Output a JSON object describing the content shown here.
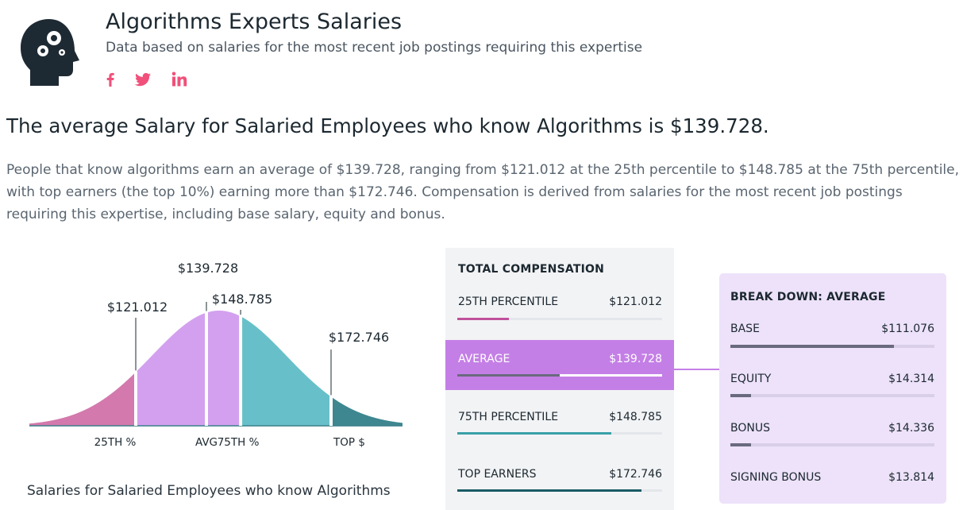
{
  "header": {
    "title": "Algorithms Experts Salaries",
    "subtitle": "Data based on salaries for the most recent job postings requiring this expertise",
    "social": [
      "facebook-icon",
      "twitter-icon",
      "linkedin-icon"
    ],
    "accent_color": "#f0507a"
  },
  "headline": "The average Salary for Salaried Employees who know Algorithms is $139.728.",
  "paragraph": "People that know algorithms earn an average of $139.728, ranging from $121.012 at the 25th percentile to $148.785 at the 75th percentile, with top earners (the top 10%) earning more than $172.746. Compensation is derived from salaries for the most recent job postings requiring this expertise, including base salary, equity and bonus.",
  "chart_data": {
    "type": "area",
    "markers": [
      {
        "label": "25TH %",
        "value_label": "$121.012",
        "value": 121012,
        "color": "#d379ad"
      },
      {
        "label": "AVG",
        "value_label": "$139.728",
        "value": 139728,
        "color": "#d3a0ef"
      },
      {
        "label": "75TH %",
        "value_label": "$148.785",
        "value": 148785,
        "color": "#67c0c9"
      },
      {
        "label": "TOP $",
        "value_label": "$172.746",
        "value": 172746,
        "color": "#3e8790"
      }
    ],
    "caption": "Salaries for Salaried Employees who know Algorithms"
  },
  "total_compensation": {
    "heading": "TOTAL COMPENSATION",
    "rows": [
      {
        "label": "25TH PERCENTILE",
        "value": "$121.012",
        "fill": 0.25,
        "color": "#c0509a"
      },
      {
        "label": "AVERAGE",
        "value": "$139.728",
        "fill": 0.5,
        "color": "#6a6a7f",
        "highlight": "#c47fe6"
      },
      {
        "label": "75TH PERCENTILE",
        "value": "$148.785",
        "fill": 0.75,
        "color": "#3aa0a8"
      },
      {
        "label": "TOP EARNERS",
        "value": "$172.746",
        "fill": 0.9,
        "color": "#1a5a66"
      }
    ]
  },
  "breakdown": {
    "heading": "BREAK DOWN: AVERAGE",
    "rows": [
      {
        "label": "BASE",
        "value": "$111.076",
        "fill": 0.8
      },
      {
        "label": "EQUITY",
        "value": "$14.314",
        "fill": 0.1
      },
      {
        "label": "BONUS",
        "value": "$14.336",
        "fill": 0.1
      },
      {
        "label": "SIGNING BONUS",
        "value": "$13.814",
        "fill": 0.1
      }
    ]
  }
}
